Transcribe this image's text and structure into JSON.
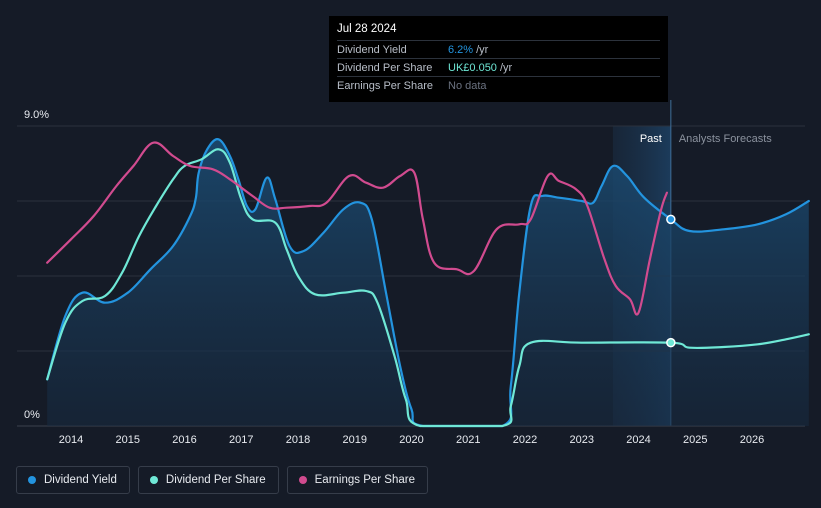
{
  "tooltip": {
    "date": "Jul 28 2024",
    "rows": [
      {
        "label": "Dividend Yield",
        "value": "6.2%",
        "unit": "/yr"
      },
      {
        "label": "Dividend Per Share",
        "value": "UK£0.050",
        "unit": "/yr"
      },
      {
        "label": "Earnings Per Share",
        "value": "No data",
        "unit": ""
      }
    ]
  },
  "legend": [
    {
      "label": "Dividend Yield",
      "color": "#2394df"
    },
    {
      "label": "Dividend Per Share",
      "color": "#6fe8d6"
    },
    {
      "label": "Earnings Per Share",
      "color": "#d14b8f"
    }
  ],
  "chart_data": {
    "type": "line",
    "y_axis_labels": [
      "9.0%",
      "0%"
    ],
    "ylim": [
      0,
      9
    ],
    "xlim": [
      2013.4,
      2027.0
    ],
    "x_ticks": [
      "2014",
      "2015",
      "2016",
      "2017",
      "2018",
      "2019",
      "2020",
      "2021",
      "2022",
      "2023",
      "2024",
      "2025",
      "2026"
    ],
    "region_labels": {
      "past": "Past",
      "forecast": "Analysts Forecasts"
    },
    "past_band": [
      2023.55,
      2024.57
    ],
    "marker_x": 2024.57,
    "grid": true,
    "series": [
      {
        "name": "Dividend Yield",
        "color": "#2394df",
        "area": true,
        "points": [
          [
            2013.58,
            1.4
          ],
          [
            2013.9,
            3.3
          ],
          [
            2014.2,
            4.0
          ],
          [
            2014.6,
            3.7
          ],
          [
            2015.0,
            4.0
          ],
          [
            2015.4,
            4.7
          ],
          [
            2015.8,
            5.4
          ],
          [
            2016.1,
            6.3
          ],
          [
            2016.2,
            6.85
          ],
          [
            2016.25,
            7.6
          ],
          [
            2016.4,
            8.3
          ],
          [
            2016.6,
            8.6
          ],
          [
            2016.8,
            8.1
          ],
          [
            2016.95,
            7.4
          ],
          [
            2017.1,
            6.6
          ],
          [
            2017.25,
            6.5
          ],
          [
            2017.45,
            7.45
          ],
          [
            2017.6,
            6.8
          ],
          [
            2017.85,
            5.4
          ],
          [
            2018.1,
            5.25
          ],
          [
            2018.45,
            5.8
          ],
          [
            2018.8,
            6.5
          ],
          [
            2019.1,
            6.7
          ],
          [
            2019.3,
            6.2
          ],
          [
            2019.55,
            4.0
          ],
          [
            2019.8,
            1.8
          ],
          [
            2020.0,
            0.5
          ],
          [
            2020.2,
            0.0
          ],
          [
            2021.6,
            0.0
          ],
          [
            2021.75,
            1.2
          ],
          [
            2021.9,
            4.0
          ],
          [
            2022.1,
            6.6
          ],
          [
            2022.3,
            6.9
          ],
          [
            2022.6,
            6.85
          ],
          [
            2023.0,
            6.75
          ],
          [
            2023.2,
            6.7
          ],
          [
            2023.35,
            7.2
          ],
          [
            2023.55,
            7.8
          ],
          [
            2023.8,
            7.5
          ],
          [
            2024.1,
            6.85
          ],
          [
            2024.57,
            6.2
          ],
          [
            2024.9,
            5.85
          ],
          [
            2025.5,
            5.9
          ],
          [
            2026.1,
            6.05
          ],
          [
            2026.6,
            6.35
          ],
          [
            2027.0,
            6.75
          ]
        ]
      },
      {
        "name": "Dividend Per Share",
        "color": "#6fe8d6",
        "area": false,
        "points": [
          [
            2013.58,
            1.4
          ],
          [
            2013.9,
            3.1
          ],
          [
            2014.2,
            3.75
          ],
          [
            2014.6,
            3.9
          ],
          [
            2014.9,
            4.6
          ],
          [
            2015.2,
            5.7
          ],
          [
            2015.5,
            6.6
          ],
          [
            2015.8,
            7.4
          ],
          [
            2016.0,
            7.8
          ],
          [
            2016.3,
            8.0
          ],
          [
            2016.6,
            8.3
          ],
          [
            2016.8,
            7.9
          ],
          [
            2017.0,
            6.8
          ],
          [
            2017.2,
            6.2
          ],
          [
            2017.6,
            6.1
          ],
          [
            2017.8,
            5.3
          ],
          [
            2018.0,
            4.5
          ],
          [
            2018.3,
            3.95
          ],
          [
            2018.8,
            4.0
          ],
          [
            2019.2,
            4.05
          ],
          [
            2019.4,
            3.7
          ],
          [
            2019.7,
            2.1
          ],
          [
            2019.9,
            0.8
          ],
          [
            2020.15,
            0.0
          ],
          [
            2021.6,
            0.0
          ],
          [
            2021.75,
            0.6
          ],
          [
            2021.9,
            1.8
          ],
          [
            2022.1,
            2.5
          ],
          [
            2023.0,
            2.5
          ],
          [
            2024.57,
            2.5
          ],
          [
            2024.9,
            2.35
          ],
          [
            2025.5,
            2.37
          ],
          [
            2026.1,
            2.45
          ],
          [
            2026.6,
            2.6
          ],
          [
            2027.0,
            2.75
          ]
        ]
      },
      {
        "name": "Earnings Per Share",
        "color": "#d14b8f",
        "area": false,
        "points": [
          [
            2013.58,
            4.9
          ],
          [
            2014.0,
            5.6
          ],
          [
            2014.4,
            6.3
          ],
          [
            2014.8,
            7.2
          ],
          [
            2015.1,
            7.8
          ],
          [
            2015.45,
            8.5
          ],
          [
            2015.8,
            8.1
          ],
          [
            2016.1,
            7.8
          ],
          [
            2016.5,
            7.7
          ],
          [
            2016.8,
            7.4
          ],
          [
            2017.2,
            6.9
          ],
          [
            2017.5,
            6.55
          ],
          [
            2017.8,
            6.55
          ],
          [
            2018.2,
            6.6
          ],
          [
            2018.5,
            6.7
          ],
          [
            2018.9,
            7.5
          ],
          [
            2019.2,
            7.3
          ],
          [
            2019.5,
            7.15
          ],
          [
            2019.8,
            7.5
          ],
          [
            2020.05,
            7.6
          ],
          [
            2020.2,
            6.2
          ],
          [
            2020.4,
            4.9
          ],
          [
            2020.8,
            4.7
          ],
          [
            2021.1,
            4.65
          ],
          [
            2021.5,
            5.9
          ],
          [
            2021.9,
            6.05
          ],
          [
            2022.1,
            6.2
          ],
          [
            2022.4,
            7.5
          ],
          [
            2022.6,
            7.35
          ],
          [
            2022.9,
            7.1
          ],
          [
            2023.1,
            6.6
          ],
          [
            2023.4,
            5.0
          ],
          [
            2023.6,
            4.2
          ],
          [
            2023.85,
            3.8
          ],
          [
            2024.0,
            3.4
          ],
          [
            2024.2,
            5.0
          ],
          [
            2024.4,
            6.5
          ],
          [
            2024.5,
            7.0
          ]
        ]
      }
    ]
  }
}
